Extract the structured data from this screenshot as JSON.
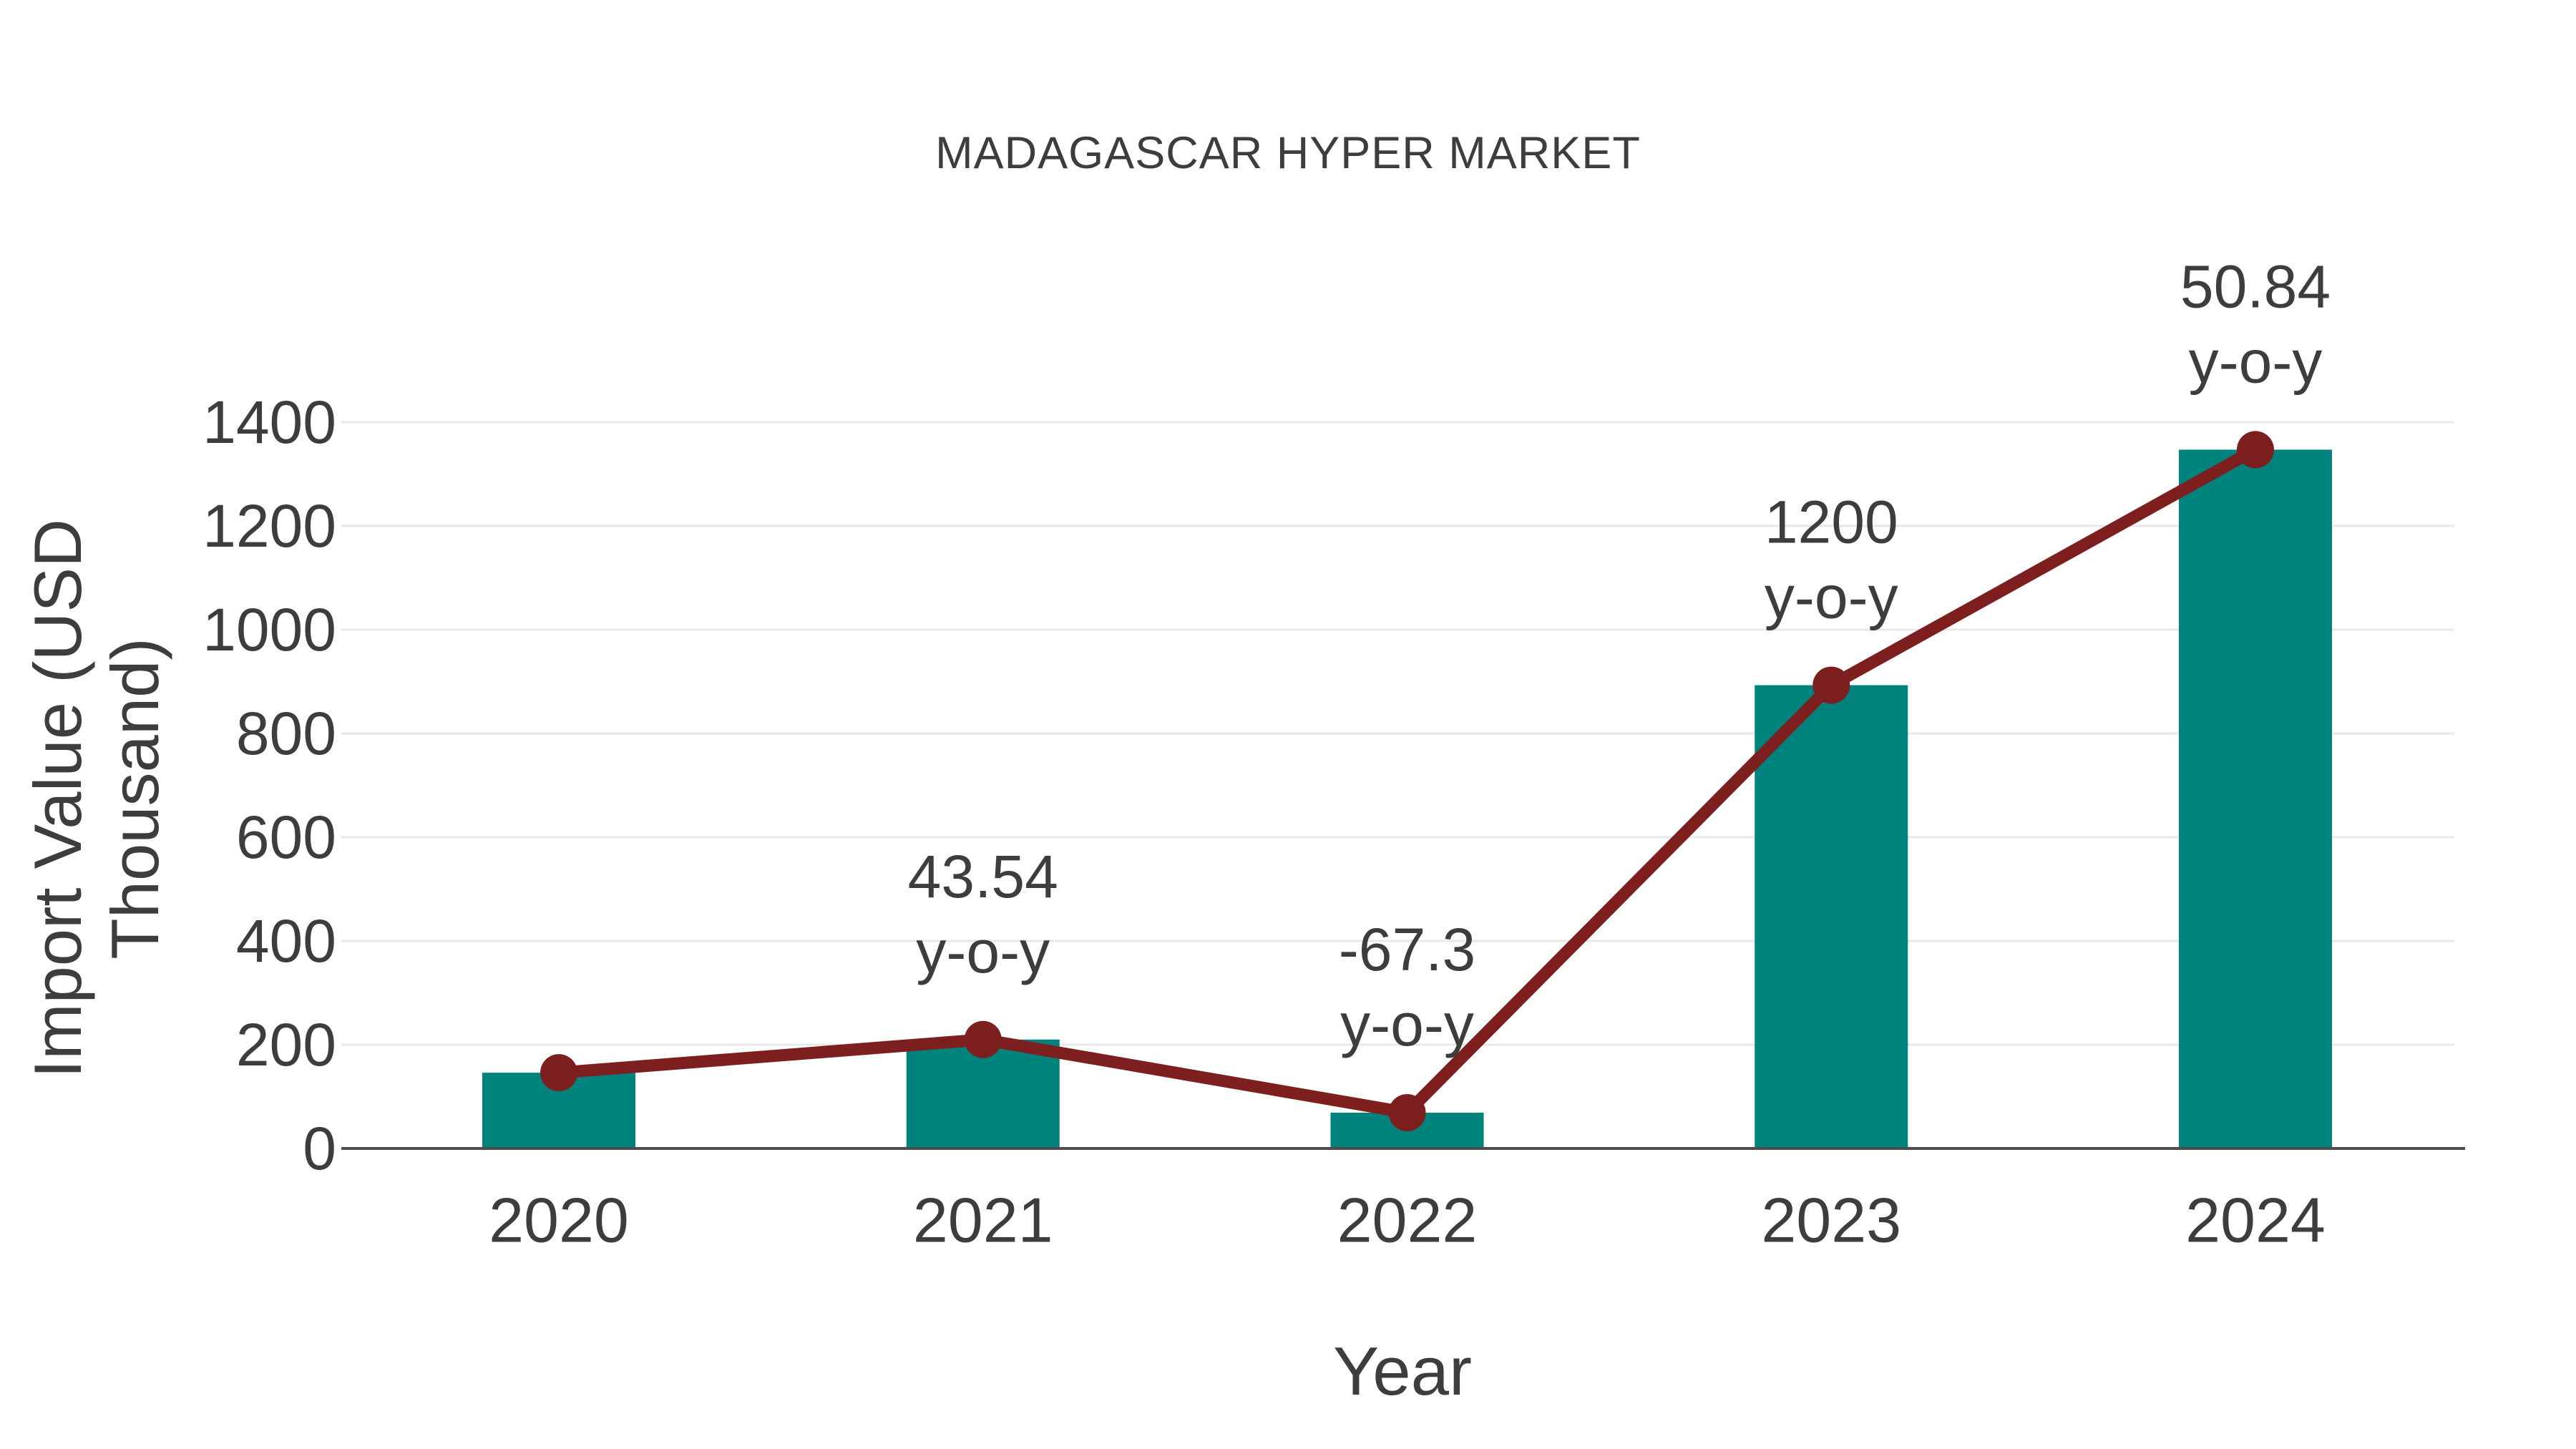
{
  "chart_data": {
    "type": "bar",
    "title": "MADAGASCAR HYPER MARKET",
    "xlabel": "Year",
    "ylabel": "Import Value (USD Thousand)",
    "categories": [
      "2020",
      "2021",
      "2022",
      "2023",
      "2024"
    ],
    "series": [
      {
        "name": "import-value-bars",
        "type": "bar",
        "values": [
          146,
          210,
          69,
          893,
          1347
        ]
      },
      {
        "name": "import-value-trend-line",
        "type": "line",
        "values": [
          146,
          210,
          69,
          893,
          1347
        ]
      }
    ],
    "annotations": [
      {
        "index": 1,
        "category": "2021",
        "text_line1": "43.54",
        "text_line2": "y-o-y"
      },
      {
        "index": 2,
        "category": "2022",
        "text_line1": "-67.3",
        "text_line2": "y-o-y"
      },
      {
        "index": 3,
        "category": "2023",
        "text_line1": "1200",
        "text_line2": "y-o-y"
      },
      {
        "index": 4,
        "category": "2024",
        "text_line1": "50.84",
        "text_line2": "y-o-y"
      }
    ],
    "yticks": [
      0,
      200,
      400,
      600,
      800,
      1000,
      1200,
      1400
    ],
    "ylim": [
      0,
      1400
    ],
    "grid": true,
    "legend": false
  },
  "colors": {
    "bar": "#00827D",
    "line": "#7E1F1F",
    "text": "#3D3D3D",
    "grid": "#E8E8E8",
    "axis": "#4D4D4D",
    "background": "#FFFFFF"
  }
}
